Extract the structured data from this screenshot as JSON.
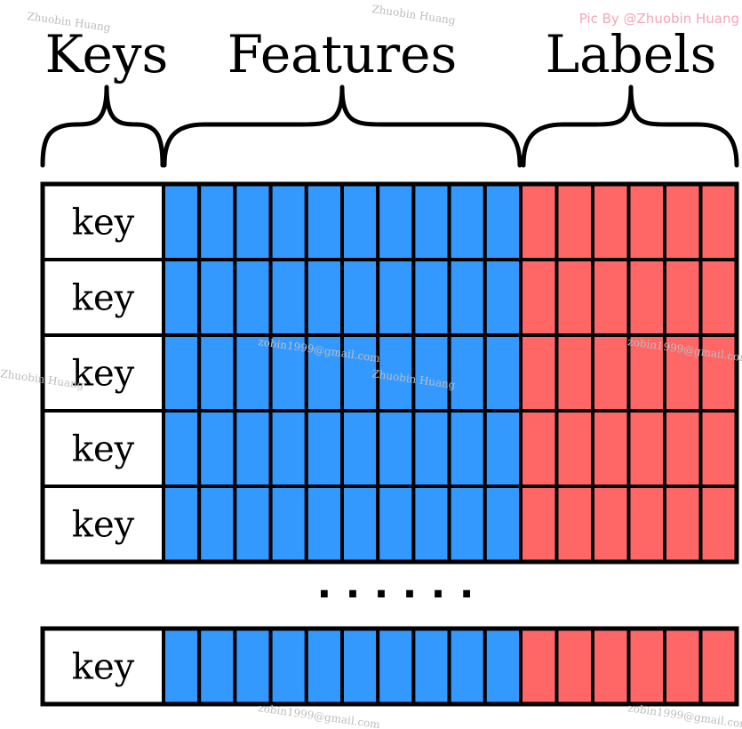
{
  "headings": {
    "keys": "Keys",
    "features": "Features",
    "labels": "Labels"
  },
  "rows": {
    "key_label": "key",
    "visible_rows_top": 5,
    "visible_rows_bottom": 1
  },
  "features": {
    "columns": 10,
    "color": "#3399ff"
  },
  "labels": {
    "columns": 6,
    "color": "#ff6666"
  },
  "ellipsis": "· · · · · ·",
  "credit": "Pic By @Zhuobin Huang",
  "watermarks": {
    "name": "Zhuobin Huang",
    "email": "zobin1999@gmail.com"
  }
}
